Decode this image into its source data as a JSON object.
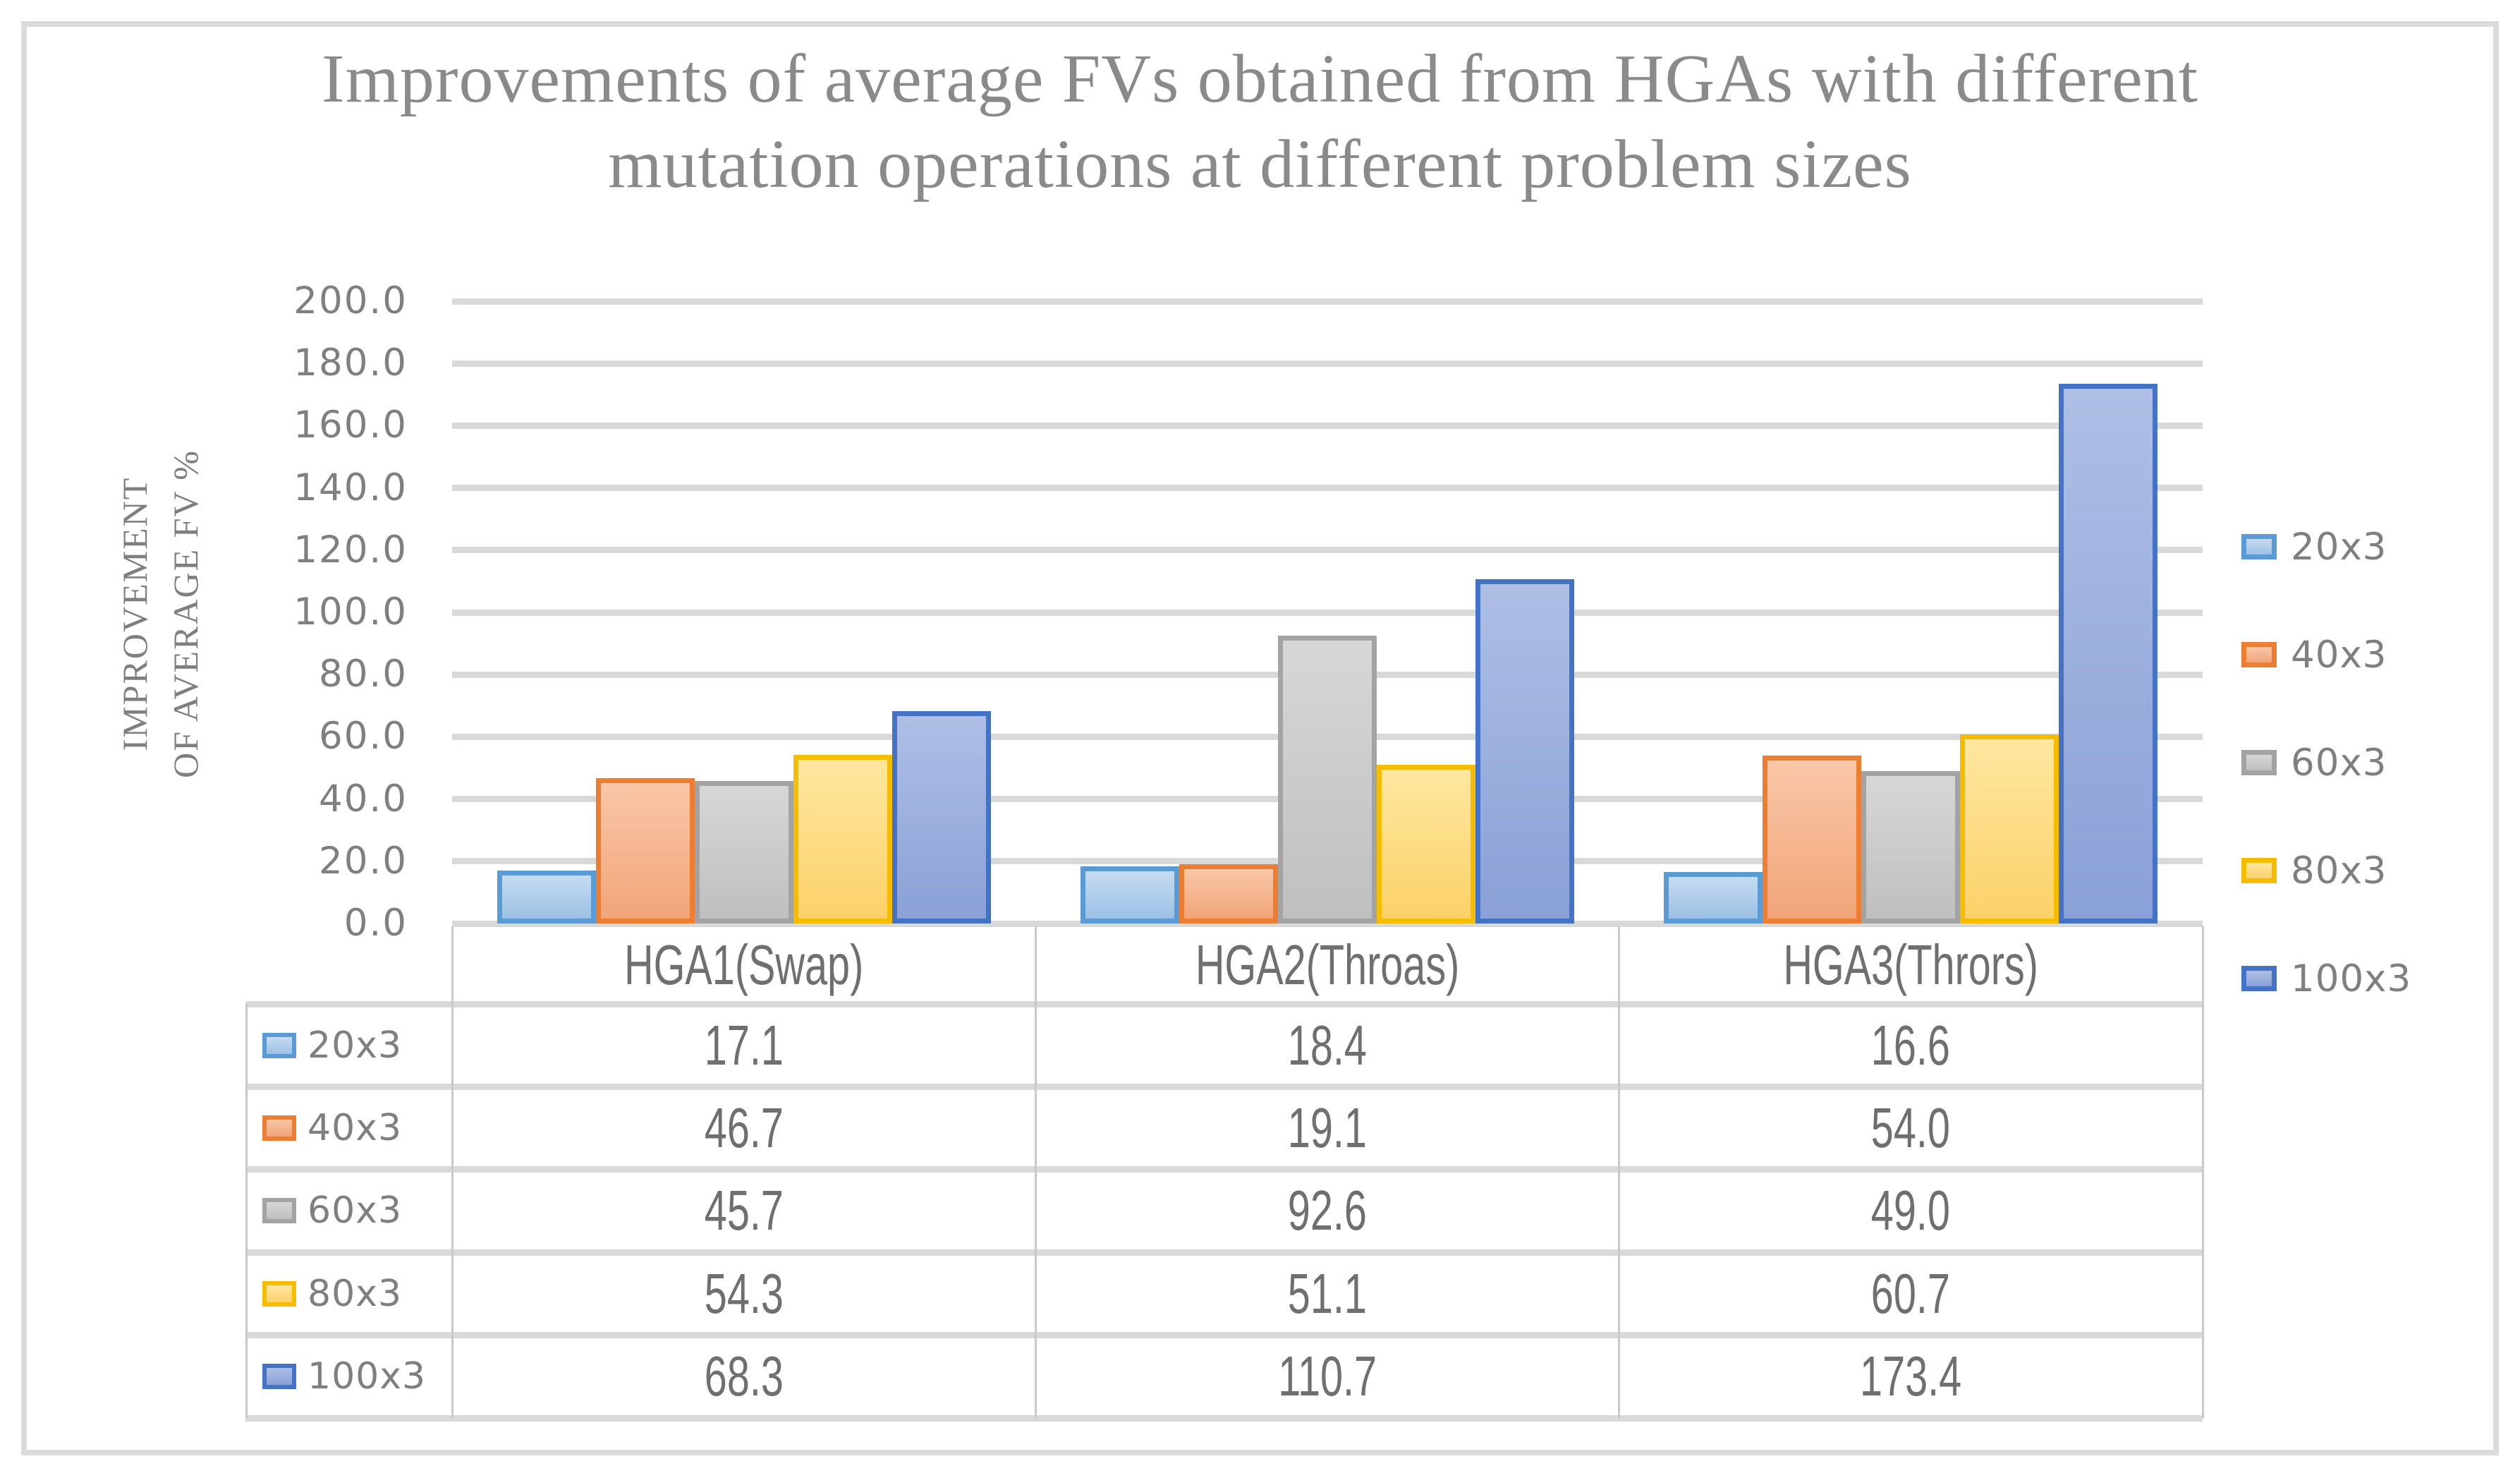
{
  "title": {
    "line1": "Improvements of average FVs obtained from HGAs with different",
    "line2": "mutation operations at different problem sizes"
  },
  "y_axis": {
    "title_line1": "IMPROVEMENT",
    "title_line2": "OF AVERAGE FV %",
    "ticks": [
      "0.0",
      "20.0",
      "40.0",
      "60.0",
      "80.0",
      "100.0",
      "120.0",
      "140.0",
      "160.0",
      "180.0",
      "200.0"
    ]
  },
  "chart_data": {
    "type": "bar",
    "title": "Improvements of average FVs obtained from HGAs with different mutation operations at different problem sizes",
    "xlabel": "",
    "ylabel": "IMPROVEMENT OF AVERAGE FV %",
    "ylim": [
      0,
      200
    ],
    "ytick_step": 20,
    "grid": true,
    "legend_position": "right",
    "categories": [
      "HGA1(Swap)",
      "HGA2(Throas)",
      "HGA3(Thrors)"
    ],
    "series": [
      {
        "name": "20x3",
        "values": [
          17.1,
          18.4,
          16.6
        ],
        "fill_top": "#C6DBF0",
        "fill_bottom": "#9CC1E5",
        "border": "#5B9BD5"
      },
      {
        "name": "40x3",
        "values": [
          46.7,
          19.1,
          54.0
        ],
        "fill_top": "#F9C7A8",
        "fill_bottom": "#F2A478",
        "border": "#ED7D31"
      },
      {
        "name": "60x3",
        "values": [
          45.7,
          92.6,
          49.0
        ],
        "fill_top": "#D7D7D7",
        "fill_bottom": "#BFBFBF",
        "border": "#A3A3A3"
      },
      {
        "name": "80x3",
        "values": [
          54.3,
          51.1,
          60.7
        ],
        "fill_top": "#FFE7A0",
        "fill_bottom": "#FBD169",
        "border": "#F5BC00"
      },
      {
        "name": "100x3",
        "values": [
          68.3,
          110.7,
          173.4
        ],
        "fill_top": "#AEBEE5",
        "fill_bottom": "#8AA1D7",
        "border": "#4472C4"
      }
    ]
  },
  "table": {
    "column_headers": [
      "HGA1(Swap)",
      "HGA2(Throas)",
      "HGA3(Thrors)"
    ],
    "rows": [
      {
        "label": "20x3",
        "values": [
          "17.1",
          "18.4",
          "16.6"
        ]
      },
      {
        "label": "40x3",
        "values": [
          "46.7",
          "19.1",
          "54.0"
        ]
      },
      {
        "label": "60x3",
        "values": [
          "45.7",
          "92.6",
          "49.0"
        ]
      },
      {
        "label": "80x3",
        "values": [
          "54.3",
          "51.1",
          "60.7"
        ]
      },
      {
        "label": "100x3",
        "values": [
          "68.3",
          "110.7",
          "173.4"
        ]
      }
    ]
  },
  "colors": {
    "figure_border": "#DBDBDB",
    "gridline": "#D9D9D9",
    "table_vline": "#C9C9C9",
    "title_text": "#8A8A8A",
    "axis_text": "#7F7F7F",
    "table_text": "#6F6F6F",
    "background": "#FFFFFF"
  }
}
